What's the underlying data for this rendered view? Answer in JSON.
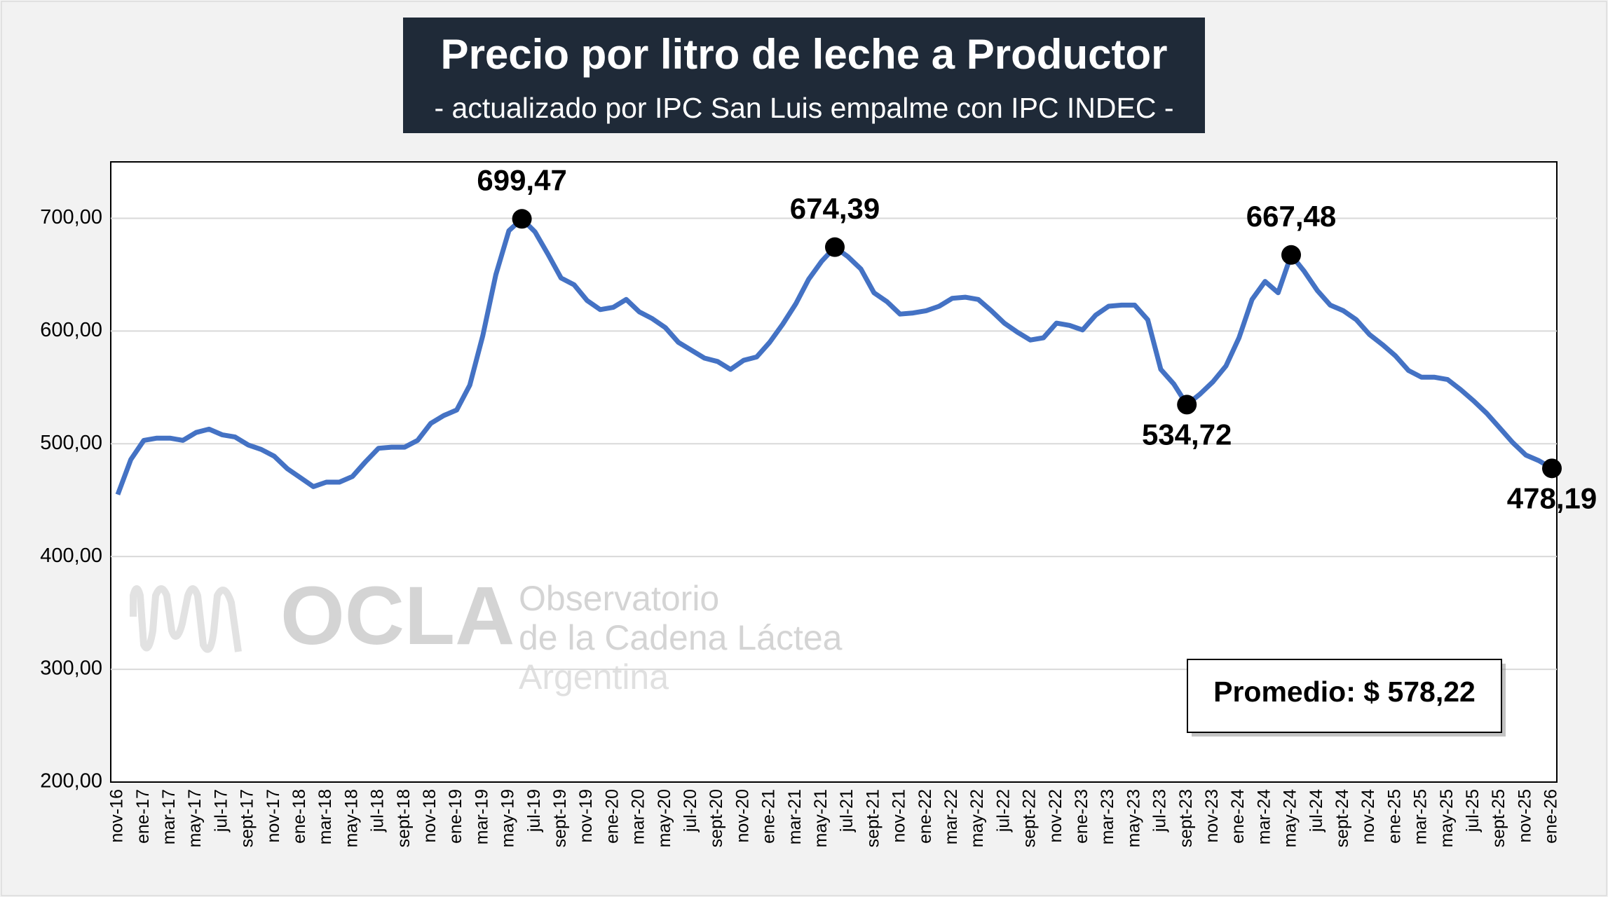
{
  "chart_data": {
    "type": "line",
    "title": "Precio por litro de leche a Productor",
    "subtitle": "- actualizado por IPC San Luis empalme con IPC INDEC -",
    "annotation": "Promedio: $ 578,22",
    "watermark": [
      "OCLA",
      "Observatorio",
      "de la Cadena Láctea",
      "Argentina"
    ],
    "categories": [
      "nov-16",
      null,
      "ene-17",
      null,
      "mar-17",
      null,
      "may-17",
      null,
      "jul-17",
      null,
      "sept-17",
      null,
      "nov-17",
      null,
      "ene-18",
      null,
      "mar-18",
      null,
      "may-18",
      null,
      "jul-18",
      null,
      "sept-18",
      null,
      "nov-18",
      null,
      "ene-19",
      null,
      "mar-19",
      null,
      "may-19",
      null,
      "jul-19",
      null,
      "sept-19",
      null,
      "nov-19",
      null,
      "ene-20",
      null,
      "mar-20",
      null,
      "may-20",
      null,
      "jul-20",
      null,
      "sept-20",
      null,
      "nov-20",
      null,
      "ene-21",
      null,
      "mar-21",
      null,
      "may-21",
      null,
      "jul-21",
      null,
      "sept-21",
      null,
      "nov-21",
      null,
      "ene-22",
      null,
      "mar-22",
      null,
      "may-22",
      null,
      "jul-22",
      null,
      "sept-22",
      null,
      "nov-22",
      null,
      "ene-23",
      null,
      "mar-23",
      null,
      "may-23",
      null,
      "jul-23",
      null,
      "sept-23",
      null,
      "nov-23",
      null,
      "ene-24",
      null,
      "mar-24",
      null,
      "may-24",
      null,
      "jul-24",
      null,
      "sept-24",
      null,
      "nov-24",
      null,
      "ene-25",
      null,
      "mar-25",
      null,
      "may-25",
      null,
      "jul-25",
      null,
      "sept-25",
      null,
      "nov-25",
      null,
      "ene-26"
    ],
    "series": [
      {
        "name": "Precio por litro",
        "color": "#4472c4",
        "values": [
          455,
          486,
          503,
          505,
          505,
          503,
          510,
          513,
          508,
          506,
          499,
          495,
          489,
          478,
          470,
          462,
          466,
          466,
          471,
          484,
          496,
          497,
          497,
          503,
          518,
          525,
          530,
          552,
          596,
          650,
          689,
          699.47,
          688,
          668,
          647,
          641,
          627,
          619,
          621,
          628,
          617,
          611,
          603,
          590,
          583,
          576,
          573,
          566,
          574,
          577,
          590,
          606,
          624,
          646,
          662,
          674.39,
          666,
          655,
          634,
          626,
          615,
          616,
          618,
          622,
          629,
          630,
          628,
          618,
          607,
          599,
          592,
          594,
          607,
          605,
          601,
          614,
          622,
          623,
          623,
          610,
          566,
          553,
          534.72,
          544,
          555,
          569,
          594,
          628,
          644,
          634,
          667.48,
          653,
          636,
          623,
          618,
          610,
          597,
          588,
          578,
          565,
          559,
          559,
          557,
          548,
          538,
          527,
          514,
          501,
          490,
          485,
          478.19
        ],
        "value_labels": [
          null,
          null,
          null,
          null,
          null,
          null,
          null,
          null,
          null,
          null,
          null,
          null,
          null,
          null,
          null,
          null,
          null,
          null,
          null,
          null,
          null,
          null,
          null,
          null,
          null,
          null,
          null,
          null,
          null,
          null,
          null,
          "699,47",
          null,
          null,
          null,
          null,
          null,
          null,
          null,
          null,
          null,
          null,
          null,
          null,
          null,
          null,
          null,
          null,
          null,
          null,
          null,
          null,
          null,
          null,
          null,
          "674,39",
          null,
          null,
          null,
          null,
          null,
          null,
          null,
          null,
          null,
          null,
          null,
          null,
          null,
          null,
          null,
          null,
          null,
          null,
          null,
          null,
          null,
          null,
          null,
          null,
          null,
          null,
          "534,72",
          null,
          null,
          null,
          null,
          null,
          null,
          null,
          "667,48",
          null,
          null,
          null,
          null,
          null,
          null,
          null,
          null,
          null,
          null,
          null,
          null,
          null,
          null,
          null,
          null,
          null,
          null,
          null,
          "478,19"
        ]
      }
    ],
    "ylim": [
      200,
      750
    ],
    "yticks": [
      {
        "value": 200,
        "label": "200,00"
      },
      {
        "value": 300,
        "label": "300,00"
      },
      {
        "value": 400,
        "label": "400,00"
      },
      {
        "value": 500,
        "label": "500,00"
      },
      {
        "value": 600,
        "label": "600,00"
      },
      {
        "value": 700,
        "label": "700,00"
      }
    ],
    "grid": true
  }
}
